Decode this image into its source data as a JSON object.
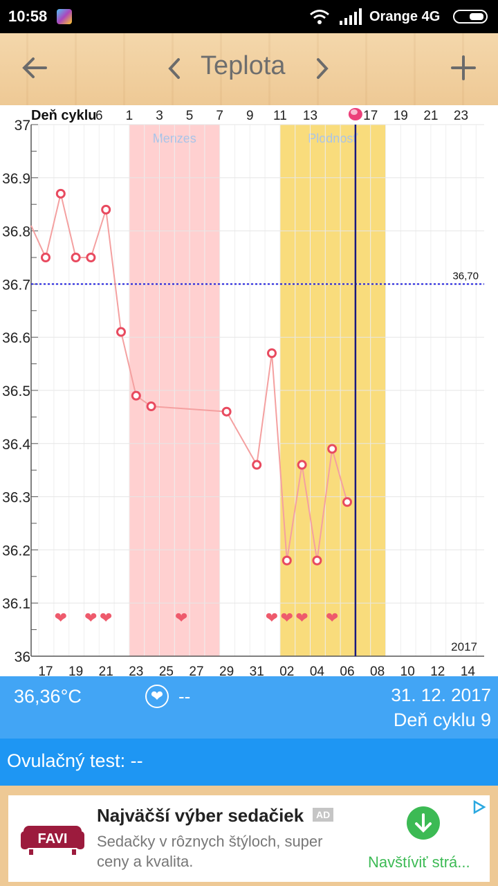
{
  "status_bar": {
    "time": "10:58",
    "carrier": "Orange 4G"
  },
  "app_bar": {
    "title": "Teplota"
  },
  "chart_data": {
    "type": "line",
    "x_top_label": "Deň cyklu",
    "x_top_ticks": [
      "6",
      "1",
      "3",
      "5",
      "7",
      "9",
      "11",
      "13",
      "17",
      "19",
      "21",
      "23"
    ],
    "x_bottom_ticks": [
      "17",
      "19",
      "21",
      "23",
      "25",
      "27",
      "29",
      "31",
      "02",
      "04",
      "06",
      "08",
      "10",
      "12",
      "14"
    ],
    "y_ticks": [
      "37",
      "36.9",
      "36.8",
      "36.7",
      "36.6",
      "36.5",
      "36.4",
      "36.3",
      "36.2",
      "36.1",
      "36"
    ],
    "ylim": [
      36.0,
      37.0
    ],
    "year_label": "2017",
    "threshold": {
      "value": 36.7,
      "label": "36,70"
    },
    "bands": [
      {
        "label": "Menzes",
        "from_day_index": 6,
        "to_day_index": 12,
        "color": "#ffd0d0"
      },
      {
        "label": "Plodnosť",
        "from_day_index": 16,
        "to_day_index": 23,
        "color": "#f9dc7c"
      }
    ],
    "current_day_index": 21,
    "series": [
      {
        "points": [
          {
            "day_index": -1,
            "temp": 36.81,
            "marker": false
          },
          {
            "day_index": 0,
            "temp": 36.75
          },
          {
            "day_index": 1,
            "temp": 36.87
          },
          {
            "day_index": 2,
            "temp": 36.75
          },
          {
            "day_index": 3,
            "temp": 36.75
          },
          {
            "day_index": 4,
            "temp": 36.84
          },
          {
            "day_index": 5,
            "temp": 36.61
          },
          {
            "day_index": 6,
            "temp": 36.49
          },
          {
            "day_index": 7,
            "temp": 36.47
          },
          {
            "day_index": 12,
            "temp": 36.46
          },
          {
            "day_index": 14,
            "temp": 36.36
          },
          {
            "day_index": 15,
            "temp": 36.57
          },
          {
            "day_index": 16,
            "temp": 36.18
          },
          {
            "day_index": 17,
            "temp": 36.36
          },
          {
            "day_index": 18,
            "temp": 36.18
          },
          {
            "day_index": 19,
            "temp": 36.39
          },
          {
            "day_index": 20,
            "temp": 36.29
          }
        ]
      }
    ],
    "hearts_day_index": [
      1,
      3,
      4,
      9,
      15,
      16,
      17,
      19
    ]
  },
  "info": {
    "temperature": "36,36°C",
    "heart_value": "--",
    "date": "31. 12. 2017",
    "cycle_day": "Deň cyklu 9"
  },
  "ovulation": {
    "label": "Ovulačný test: --"
  },
  "ad": {
    "headline": "Najväčší výber sedačiek",
    "badge": "AD",
    "description": "Sedačky v rôznych štýloch, super ceny a kvalita.",
    "cta": "Navštíviť strá...",
    "logo_text": "FAVI"
  },
  "colors": {
    "accent_blue": "#42a5f5",
    "ovulation_bar": "#1e96f3",
    "line": "#f4a0a0",
    "marker": "#e84a5f",
    "threshold": "#1a1adb"
  }
}
